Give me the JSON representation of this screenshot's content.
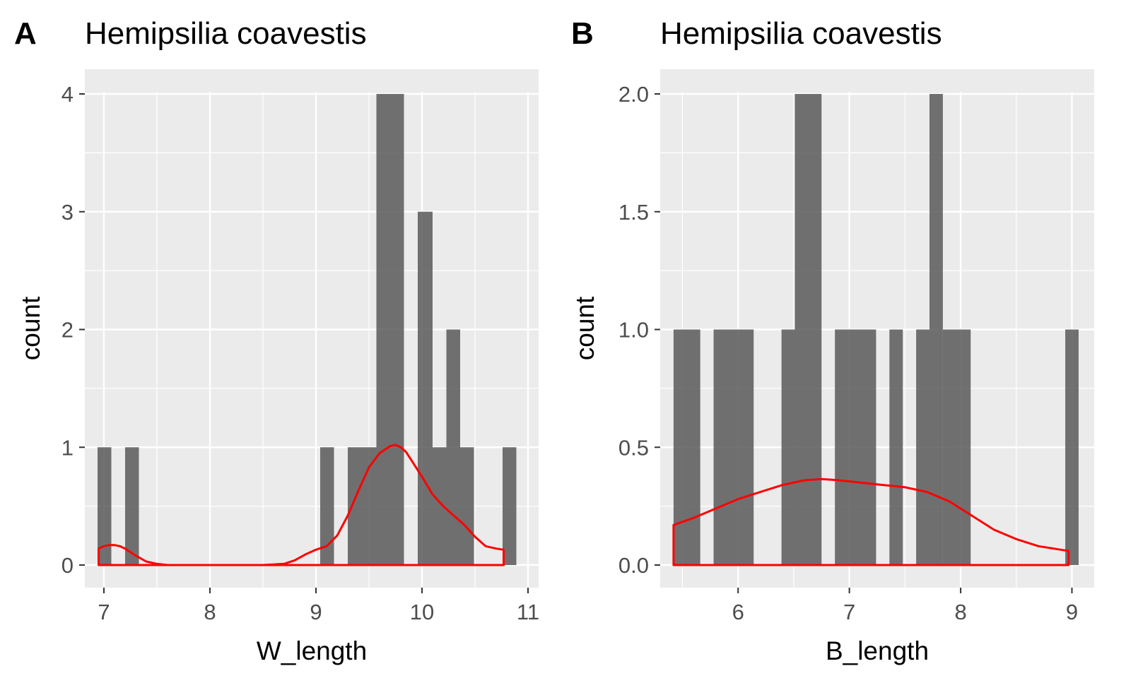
{
  "chart_data": [
    {
      "panel_label": "A",
      "type": "bar",
      "title": "Hemipsilia coavestis",
      "xlabel": "W_length",
      "ylabel": "count",
      "xlim": [
        6.82,
        11.1
      ],
      "ylim": [
        0,
        4.2
      ],
      "xticks": [
        7,
        8,
        9,
        10,
        11
      ],
      "yticks": [
        0,
        1,
        2,
        3,
        4
      ],
      "bar_color": "#595959",
      "bins": [
        {
          "x0": 6.94,
          "x1": 7.07,
          "count": 1
        },
        {
          "x0": 7.2,
          "x1": 7.33,
          "count": 1
        },
        {
          "x0": 9.04,
          "x1": 9.17,
          "count": 1
        },
        {
          "x0": 9.3,
          "x1": 9.57,
          "count": 1
        },
        {
          "x0": 9.57,
          "x1": 9.83,
          "count": 4
        },
        {
          "x0": 9.96,
          "x1": 10.1,
          "count": 3
        },
        {
          "x0": 10.1,
          "x1": 10.23,
          "count": 1
        },
        {
          "x0": 10.23,
          "x1": 10.36,
          "count": 2
        },
        {
          "x0": 10.36,
          "x1": 10.49,
          "count": 1
        },
        {
          "x0": 10.76,
          "x1": 10.89,
          "count": 1
        }
      ],
      "density_color": "#ff0000",
      "density": {
        "x": [
          6.95,
          7.0,
          7.05,
          7.1,
          7.15,
          7.2,
          7.3,
          7.4,
          7.5,
          7.6,
          7.8,
          8.0,
          8.5,
          8.7,
          8.8,
          8.9,
          9.0,
          9.1,
          9.2,
          9.3,
          9.4,
          9.5,
          9.6,
          9.7,
          9.75,
          9.8,
          9.85,
          9.9,
          10.0,
          10.1,
          10.2,
          10.3,
          10.4,
          10.5,
          10.6,
          10.7,
          10.77
        ],
        "y": [
          0.14,
          0.16,
          0.17,
          0.17,
          0.16,
          0.14,
          0.08,
          0.03,
          0.01,
          0.0,
          0.0,
          0.0,
          0.0,
          0.01,
          0.04,
          0.09,
          0.13,
          0.16,
          0.25,
          0.42,
          0.63,
          0.83,
          0.95,
          1.01,
          1.02,
          1.0,
          0.96,
          0.89,
          0.75,
          0.6,
          0.5,
          0.42,
          0.34,
          0.24,
          0.16,
          0.14,
          0.13
        ]
      }
    },
    {
      "panel_label": "B",
      "type": "bar",
      "title": "Hemipsilia coavestis",
      "xlabel": "B_length",
      "ylabel": "count",
      "xlim": [
        5.3,
        9.2
      ],
      "ylim": [
        0,
        2.1
      ],
      "xticks": [
        6,
        7,
        8,
        9
      ],
      "yticks": [
        "0.0",
        "0.5",
        "1.0",
        "1.5",
        "2.0"
      ],
      "bar_color": "#595959",
      "bins": [
        {
          "x0": 5.42,
          "x1": 5.66,
          "count": 1
        },
        {
          "x0": 5.78,
          "x1": 6.14,
          "count": 1
        },
        {
          "x0": 6.39,
          "x1": 6.51,
          "count": 1
        },
        {
          "x0": 6.51,
          "x1": 6.75,
          "count": 2
        },
        {
          "x0": 6.87,
          "x1": 7.24,
          "count": 1
        },
        {
          "x0": 7.36,
          "x1": 7.48,
          "count": 1
        },
        {
          "x0": 7.6,
          "x1": 7.72,
          "count": 1
        },
        {
          "x0": 7.72,
          "x1": 7.84,
          "count": 2
        },
        {
          "x0": 7.84,
          "x1": 8.09,
          "count": 1
        },
        {
          "x0": 8.94,
          "x1": 9.06,
          "count": 1
        }
      ],
      "density_color": "#ff0000",
      "density": {
        "x": [
          5.42,
          5.6,
          5.8,
          6.0,
          6.2,
          6.4,
          6.6,
          6.75,
          6.9,
          7.1,
          7.3,
          7.5,
          7.7,
          7.9,
          8.1,
          8.3,
          8.5,
          8.7,
          8.9,
          8.97
        ],
        "y": [
          0.17,
          0.2,
          0.24,
          0.28,
          0.31,
          0.34,
          0.36,
          0.365,
          0.36,
          0.35,
          0.34,
          0.33,
          0.31,
          0.27,
          0.21,
          0.15,
          0.11,
          0.08,
          0.065,
          0.06
        ]
      }
    }
  ]
}
